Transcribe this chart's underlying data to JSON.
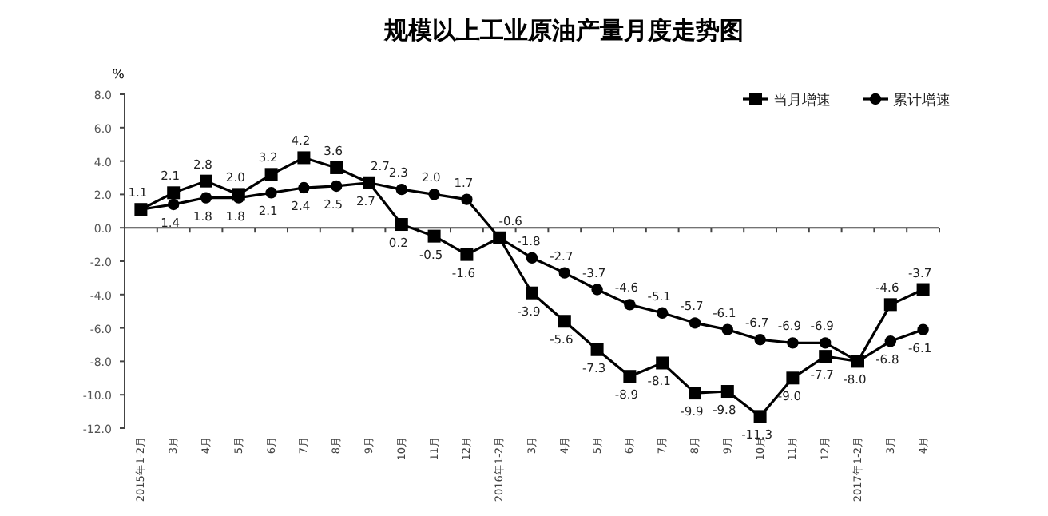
{
  "chart_data": {
    "type": "line",
    "title": "规模以上工业原油产量月度走势图",
    "ylabel": "%",
    "categories": [
      "2015年1-2月",
      "3月",
      "4月",
      "5月",
      "6月",
      "7月",
      "8月",
      "9月",
      "10月",
      "11月",
      "12月",
      "2016年1-2月",
      "3月",
      "4月",
      "5月",
      "6月",
      "7月",
      "8月",
      "9月",
      "10月",
      "11月",
      "12月",
      "2017年1-2月",
      "3月",
      "4月"
    ],
    "series": [
      {
        "name": "当月增速",
        "color": "#000000",
        "marker": "square",
        "values": [
          1.1,
          2.1,
          2.8,
          2.0,
          3.2,
          4.2,
          3.6,
          2.7,
          0.2,
          -0.5,
          -1.6,
          -0.6,
          -3.9,
          -5.6,
          -7.3,
          -8.9,
          -8.1,
          -9.9,
          -9.8,
          -11.3,
          -9.0,
          -7.7,
          -8.0,
          -4.6,
          -3.7
        ],
        "value_labels": [
          "1.1",
          "2.1",
          "2.8",
          "2.0",
          "3.2",
          "4.2",
          "3.6",
          "2.7",
          "0.2",
          "-0.5",
          "-1.6",
          "-0.6",
          "-3.9",
          "-5.6",
          "-7.3",
          "-8.9",
          "-8.1",
          "-9.9",
          "-9.8",
          "-11.3",
          "-9.0",
          "-7.7",
          "-8.0",
          "-4.6",
          "-3.7"
        ]
      },
      {
        "name": "累计增速",
        "color": "#000000",
        "marker": "circle",
        "values": [
          1.1,
          1.4,
          1.8,
          1.8,
          2.1,
          2.4,
          2.5,
          2.7,
          2.3,
          2.0,
          1.7,
          -0.6,
          -1.8,
          -2.7,
          -3.7,
          -4.6,
          -5.1,
          -5.7,
          -6.1,
          -6.7,
          -6.9,
          -6.9,
          -8.0,
          -6.8,
          -6.1
        ],
        "value_labels": [
          null,
          "1.4",
          "1.8",
          "1.8",
          "2.1",
          "2.4",
          "2.5",
          "2.7",
          "2.3",
          "2.0",
          "1.7",
          null,
          "-1.8",
          "-2.7",
          "-3.7",
          "-4.6",
          "-5.1",
          "-5.7",
          "-6.1",
          "-6.7",
          "-6.9",
          "-6.9",
          null,
          "-6.8",
          "-6.1"
        ]
      }
    ],
    "ylim": [
      -12.0,
      8.0
    ],
    "yticks": [
      {
        "value": -12,
        "label": "-12.0"
      },
      {
        "value": -10,
        "label": "-10.0"
      },
      {
        "value": -8,
        "label": "-8.0"
      },
      {
        "value": -6,
        "label": "-6.0"
      },
      {
        "value": -4,
        "label": "-4.0"
      },
      {
        "value": -2,
        "label": "-2.0"
      },
      {
        "value": 0,
        "label": "0.0"
      },
      {
        "value": 2,
        "label": "2.0"
      },
      {
        "value": 4,
        "label": "4.0"
      },
      {
        "value": 6,
        "label": "6.0"
      },
      {
        "value": 8,
        "label": "8.0"
      }
    ],
    "legend": "top right",
    "line_style": "solid"
  }
}
